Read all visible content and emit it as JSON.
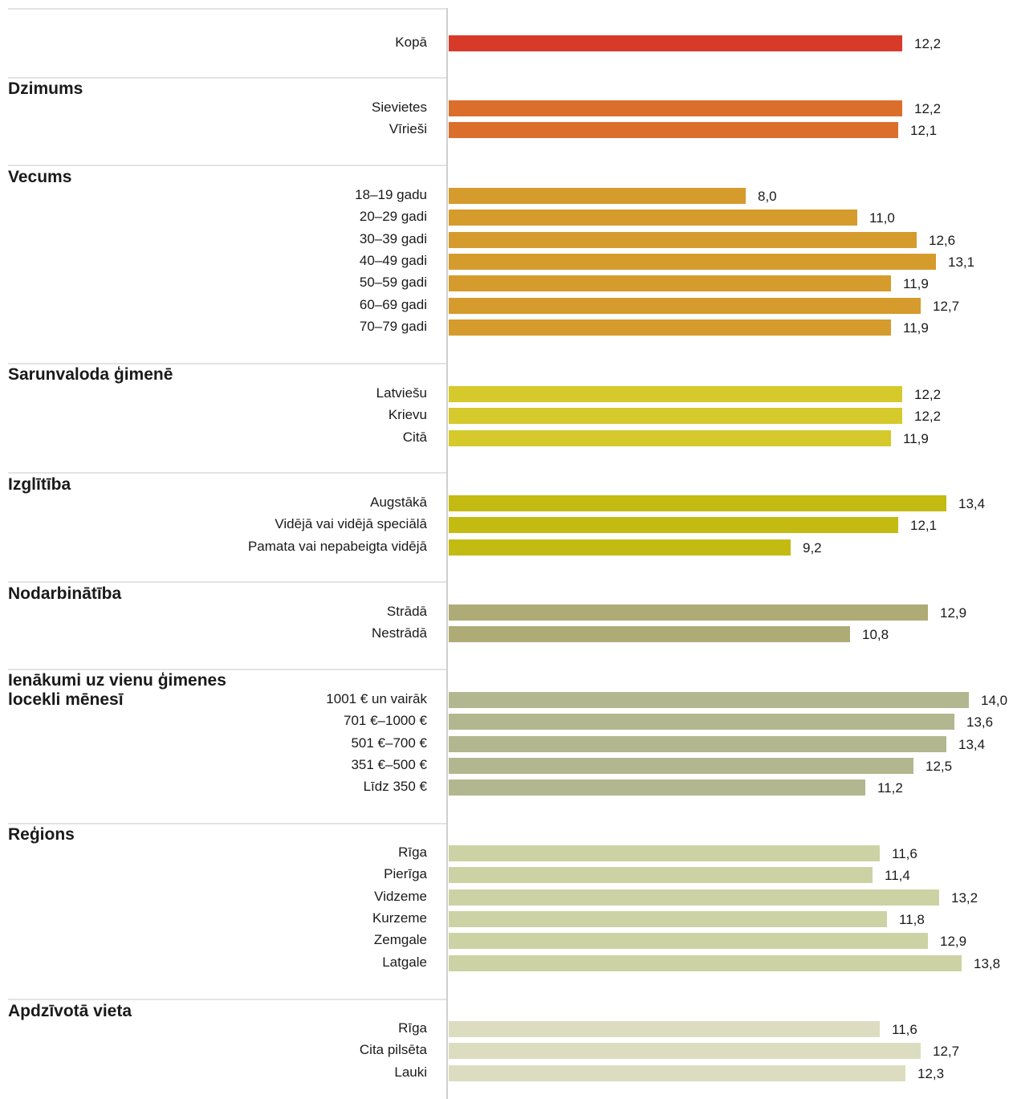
{
  "chart_data": {
    "type": "bar",
    "orientation": "horizontal",
    "groups": [
      {
        "title": "",
        "color": "#d83a2a",
        "categories": [
          "Kopā"
        ],
        "values": [
          12.2
        ],
        "value_labels": [
          "12,2"
        ]
      },
      {
        "title": "Dzimums",
        "color": "#dc6e2c",
        "categories": [
          "Sievietes",
          "Vīrieši"
        ],
        "values": [
          12.2,
          12.1
        ],
        "value_labels": [
          "12,2",
          "12,1"
        ]
      },
      {
        "title": "Vecums",
        "color": "#d59b2c",
        "categories": [
          "18–19 gadu",
          "20–29 gadi",
          "30–39 gadi",
          "40–49 gadi",
          "50–59 gadi",
          "60–69 gadi",
          "70–79 gadi"
        ],
        "values": [
          8.0,
          11.0,
          12.6,
          13.1,
          11.9,
          12.7,
          11.9
        ],
        "value_labels": [
          "8,0",
          "11,0",
          "12,6",
          "13,1",
          "11,9",
          "12,7",
          "11,9"
        ]
      },
      {
        "title": "Sarunvaloda ģimenē",
        "color": "#d5c92b",
        "categories": [
          "Latviešu",
          "Krievu",
          "Citā"
        ],
        "values": [
          12.2,
          12.2,
          11.9
        ],
        "value_labels": [
          "12,2",
          "12,2",
          "11,9"
        ]
      },
      {
        "title": "Izglītība",
        "color": "#c4bb12",
        "categories": [
          "Augstākā",
          "Vidējā vai vidējā speciālā",
          "Pamata vai nepabeigta vidējā"
        ],
        "values": [
          13.4,
          12.1,
          9.2
        ],
        "value_labels": [
          "13,4",
          "12,1",
          "9,2"
        ]
      },
      {
        "title": "Nodarbinātība",
        "color": "#aeab76",
        "categories": [
          "Strādā",
          "Nestrādā"
        ],
        "values": [
          12.9,
          10.8
        ],
        "value_labels": [
          "12,9",
          "10,8"
        ]
      },
      {
        "title": "Ienākumi uz vienu ģimenes\nlocekli mēnesī",
        "color": "#b3b78f",
        "categories": [
          "1001 € un vairāk",
          "701 €–1000 €",
          "501 €–700 €",
          "351 €–500 €",
          "Līdz 350 €"
        ],
        "values": [
          14.0,
          13.6,
          13.4,
          12.5,
          11.2
        ],
        "value_labels": [
          "14,0",
          "13,6",
          "13,4",
          "12,5",
          "11,2"
        ]
      },
      {
        "title": "Reģions",
        "color": "#cdd2a5",
        "categories": [
          "Rīga",
          "Pierīga",
          "Vidzeme",
          "Kurzeme",
          "Zemgale",
          "Latgale"
        ],
        "values": [
          11.6,
          11.4,
          13.2,
          11.8,
          12.9,
          13.8
        ],
        "value_labels": [
          "11,6",
          "11,4",
          "13,2",
          "11,8",
          "12,9",
          "13,8"
        ]
      },
      {
        "title": "Apdzīvotā vieta",
        "color": "#dcdcc0",
        "categories": [
          "Rīga",
          "Cita pilsēta",
          "Lauki"
        ],
        "values": [
          11.6,
          12.7,
          12.3
        ],
        "value_labels": [
          "11,6",
          "12,7",
          "12,3"
        ]
      }
    ],
    "xlim": [
      0,
      14.0
    ],
    "grid": false,
    "legend": "none"
  }
}
